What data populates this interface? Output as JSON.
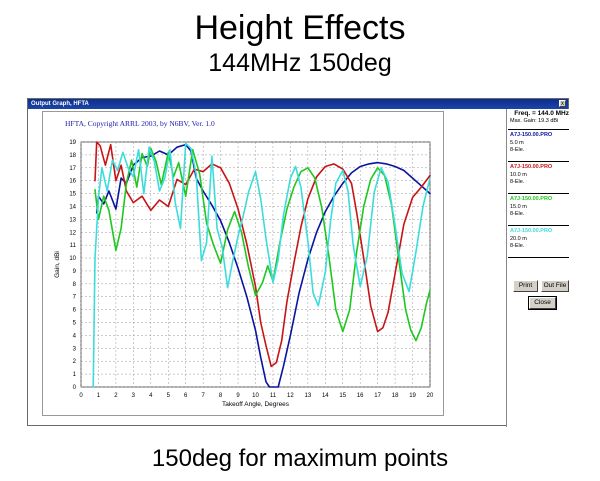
{
  "slide": {
    "title": "Height Effects",
    "subtitle": "144MHz 150deg",
    "caption": "150deg for maximum points"
  },
  "window": {
    "title": "Output Graph, HFTA",
    "close_glyph": "x"
  },
  "side_panel": {
    "freq": "Freq. = 144.0 MHz",
    "max_gain": "Max. Gain: 19.3 dBi",
    "entries": [
      {
        "file": "A7J-150.00.PRO",
        "height": "5.0 m",
        "antenna": "8-Ele.",
        "color": "#0a14a0"
      },
      {
        "file": "A7J-150.00.PRO",
        "height": "10.0 m",
        "antenna": "8-Ele.",
        "color": "#c81414"
      },
      {
        "file": "A7J-150.00.PRO",
        "height": "15.0 m",
        "antenna": "8-Ele.",
        "color": "#1ec81e"
      },
      {
        "file": "A7J-150.00.PRO",
        "height": "20.0 m",
        "antenna": "8-Ele.",
        "color": "#3cdcdc"
      }
    ],
    "buttons": {
      "print": "Print",
      "out_file": "Out File",
      "close": "Close"
    }
  },
  "chart_data": {
    "type": "line",
    "title": "HFTA, Copyright ARRL 2003, by N6BV, Ver. 1.0",
    "xlabel": "Takeoff Angle, Degrees",
    "ylabel": "Gain, dBi",
    "xlim": [
      0,
      20
    ],
    "ylim": [
      0,
      19
    ],
    "xticks": [
      "0",
      "1",
      "2",
      "3",
      "4",
      "5",
      "6",
      "7",
      "8",
      "9",
      "10",
      "11",
      "12",
      "13",
      "14",
      "15",
      "16",
      "17",
      "18",
      "19",
      "20"
    ],
    "yticks": [
      "0",
      "1",
      "2",
      "3",
      "4",
      "5",
      "6",
      "7",
      "8",
      "9",
      "10",
      "11",
      "12",
      "13",
      "14",
      "15",
      "16",
      "17",
      "18",
      "19"
    ],
    "grid": true,
    "series": [
      {
        "color": "#0a14a0",
        "x": [
          0.9,
          1,
          1.3,
          1.6,
          2,
          2.3,
          2.6,
          3,
          3.5,
          4,
          4.5,
          5,
          5.5,
          6,
          6.3,
          6.6,
          7,
          7.5,
          8,
          8.5,
          9,
          9.5,
          10,
          10.3,
          10.6,
          10.8,
          11,
          11.3,
          11.6,
          12,
          12.5,
          13,
          13.5,
          14,
          14.5,
          15,
          15.5,
          16,
          16.5,
          17,
          17.5,
          18,
          18.5,
          19,
          19.5,
          20
        ],
        "y": [
          13.5,
          14.8,
          14.2,
          15.2,
          13.8,
          16.2,
          15.8,
          17.2,
          17.8,
          17.9,
          18.3,
          18.0,
          18.6,
          18.8,
          18.3,
          16.2,
          15.2,
          14.1,
          12.9,
          11.2,
          9.2,
          7.0,
          4.4,
          2.3,
          0.4,
          0,
          0,
          0,
          1.6,
          4.0,
          7.3,
          9.9,
          12.0,
          13.6,
          14.8,
          15.8,
          16.6,
          17.1,
          17.3,
          17.4,
          17.3,
          17.1,
          16.8,
          16.2,
          15.6,
          15.0
        ]
      },
      {
        "color": "#c81414",
        "x": [
          0.8,
          0.9,
          1.1,
          1.4,
          1.7,
          2,
          2.3,
          2.6,
          3,
          3.5,
          4,
          4.5,
          5,
          5.5,
          6,
          6.5,
          7,
          7.5,
          8,
          8.5,
          9,
          9.5,
          10,
          10.3,
          10.6,
          10.9,
          11.2,
          11.5,
          11.8,
          12.2,
          12.6,
          13,
          13.5,
          14,
          14.5,
          15,
          15.5,
          15.8,
          16.2,
          16.6,
          17,
          17.3,
          17.6,
          18,
          18.5,
          19,
          19.5,
          20
        ],
        "y": [
          16,
          19.0,
          18.7,
          17.2,
          18.8,
          16.0,
          17.2,
          15.2,
          14.3,
          14.8,
          13.7,
          14.5,
          14.0,
          16.1,
          15.7,
          16.9,
          16.7,
          17.3,
          17.0,
          15.8,
          13.8,
          11.1,
          7.8,
          5.0,
          3.2,
          1.6,
          1.9,
          3.6,
          6.6,
          9.6,
          12.4,
          14.6,
          16.3,
          17.1,
          17.3,
          16.9,
          15.8,
          13.5,
          10.0,
          6.3,
          4.3,
          4.6,
          5.8,
          8.8,
          12.6,
          14.7,
          15.5,
          16.4
        ]
      },
      {
        "color": "#1ec81e",
        "x": [
          0.8,
          1,
          1.3,
          1.6,
          2,
          2.3,
          2.6,
          2.9,
          3.2,
          3.5,
          3.8,
          4,
          4.3,
          4.6,
          5,
          5.3,
          5.6,
          6,
          6.4,
          6.8,
          7.2,
          7.6,
          8,
          8.4,
          8.8,
          9.2,
          9.6,
          10,
          10.4,
          10.7,
          11,
          11.4,
          11.8,
          12.2,
          12.6,
          13,
          13.4,
          13.8,
          14.2,
          14.6,
          15,
          15.4,
          15.8,
          16.2,
          16.6,
          17,
          17.4,
          17.8,
          18.2,
          18.6,
          18.9,
          19.2,
          19.5,
          19.8,
          20
        ],
        "y": [
          15.3,
          13.0,
          14.8,
          13.7,
          10.6,
          12.3,
          15.8,
          17.6,
          15.5,
          18.1,
          17.1,
          18.5,
          17.5,
          15.7,
          18.2,
          16.3,
          17.4,
          14.8,
          18.4,
          16.5,
          12.7,
          11.0,
          9.6,
          12.2,
          13.6,
          12.0,
          9.3,
          7.1,
          8.1,
          9.4,
          8.2,
          11.2,
          13.8,
          15.5,
          16.7,
          17.0,
          16.2,
          13.9,
          10.2,
          6.0,
          4.3,
          6.0,
          10.5,
          14.0,
          16.1,
          17.0,
          16.4,
          14.1,
          10.0,
          6.0,
          4.4,
          3.6,
          4.6,
          6.5,
          7.5
        ]
      },
      {
        "color": "#3cdcdc",
        "x": [
          0.7,
          0.8,
          1,
          1.2,
          1.5,
          1.8,
          2.1,
          2.4,
          2.7,
          3,
          3.3,
          3.6,
          3.9,
          4.2,
          4.5,
          4.8,
          5.1,
          5.4,
          5.7,
          6,
          6.3,
          6.6,
          6.9,
          7.2,
          7.5,
          7.8,
          8.1,
          8.4,
          8.7,
          9,
          9.3,
          9.6,
          10,
          10.3,
          10.6,
          11,
          11.3,
          11.6,
          12,
          12.3,
          12.6,
          13,
          13.3,
          13.6,
          14,
          14.3,
          14.6,
          15,
          15.3,
          15.6,
          16,
          16.4,
          16.8,
          17.2,
          17.6,
          18,
          18.4,
          18.8,
          19.2,
          19.6,
          20
        ],
        "y": [
          0,
          10.0,
          14.7,
          17.0,
          15.2,
          17.6,
          16.8,
          18.2,
          17.0,
          16.3,
          18.4,
          15.0,
          18.6,
          17.5,
          15.2,
          16.2,
          18.4,
          14.3,
          12.3,
          18.9,
          18.5,
          16.5,
          9.8,
          11.2,
          17.9,
          12.3,
          10.8,
          7.7,
          9.8,
          11.7,
          13.3,
          15.1,
          16.7,
          14.6,
          11.5,
          8.1,
          9.9,
          13.3,
          16.2,
          17.1,
          15.5,
          11.3,
          7.3,
          6.3,
          8.9,
          12.8,
          15.8,
          16.8,
          15.2,
          11.0,
          7.8,
          10.1,
          15.1,
          17.0,
          15.9,
          12.5,
          8.8,
          7.4,
          10.5,
          14.0,
          16.2
        ]
      }
    ]
  }
}
